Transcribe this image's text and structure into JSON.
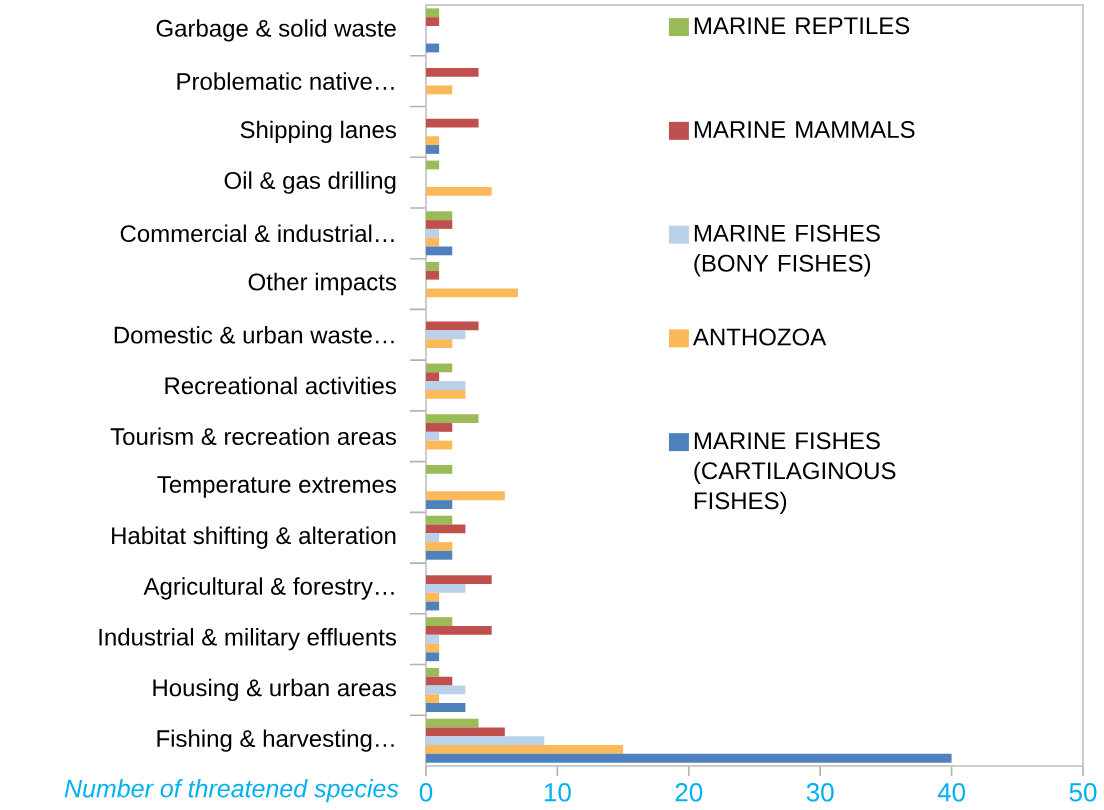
{
  "chart_data": {
    "type": "bar",
    "orientation": "horizontal",
    "xlabel": "Number of threatened species",
    "categories": [
      "Garbage & solid waste",
      "Problematic native…",
      "Shipping lanes",
      "Oil & gas drilling",
      "Commercial & industrial…",
      "Other impacts",
      "Domestic & urban waste…",
      "Recreational activities",
      "Tourism & recreation areas",
      "Temperature extremes",
      "Habitat shifting & alteration",
      "Agricultural & forestry…",
      "Industrial & military effluents",
      "Housing & urban areas",
      "Fishing & harvesting…"
    ],
    "series": [
      {
        "name": "MARINE REPTILES",
        "color": "#9bbb59",
        "values": [
          1,
          0,
          0,
          1,
          2,
          1,
          0,
          2,
          4,
          2,
          2,
          0,
          2,
          1,
          4
        ]
      },
      {
        "name": "MARINE MAMMALS",
        "color": "#c0504d",
        "values": [
          1,
          4,
          4,
          0,
          2,
          1,
          4,
          1,
          2,
          0,
          3,
          5,
          5,
          2,
          6
        ]
      },
      {
        "name": "MARINE FISHES (BONY FISHES)",
        "color": "#b9d1ea",
        "values": [
          0,
          0,
          0,
          0,
          1,
          0,
          3,
          3,
          1,
          0,
          1,
          3,
          1,
          3,
          9
        ]
      },
      {
        "name": "ANTHOZOA",
        "color": "#fbb95a",
        "values": [
          0,
          2,
          1,
          5,
          1,
          7,
          2,
          3,
          2,
          6,
          2,
          1,
          1,
          1,
          15
        ]
      },
      {
        "name": "MARINE FISHES (CARTILAGINOUS FISHES)",
        "color": "#4f81bd",
        "values": [
          1,
          0,
          1,
          0,
          2,
          0,
          0,
          0,
          0,
          2,
          2,
          1,
          1,
          3,
          40
        ]
      }
    ],
    "xlim": [
      0,
      50
    ],
    "xticks": [
      0,
      10,
      20,
      30,
      40,
      50
    ],
    "grid": false,
    "legend": "top right"
  }
}
